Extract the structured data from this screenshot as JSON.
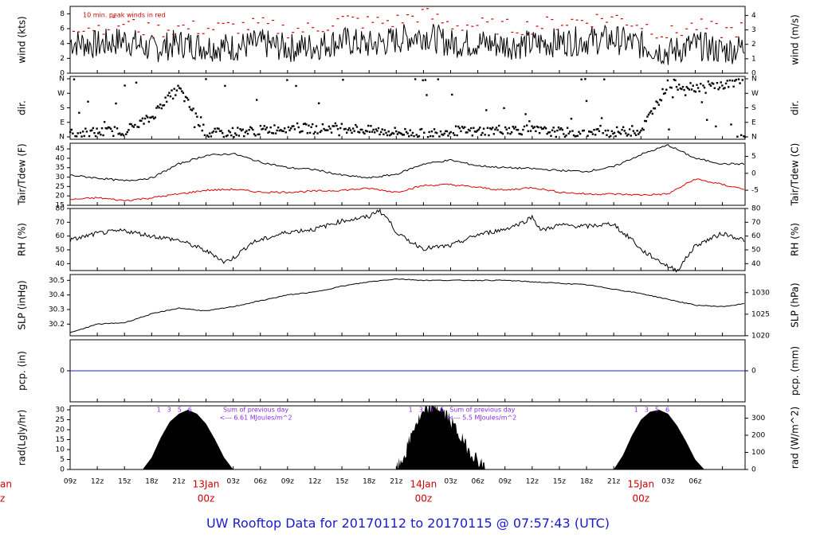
{
  "title": "UW Rooftop Data for 20170112  to  20170115 @ 07:57:43  (UTC)",
  "chart_data": [
    {
      "type": "line",
      "panel": "wind",
      "ylabel_left": "wind (kts)",
      "ylabel_right": "wind (m/s)",
      "ylim": [
        0,
        9
      ],
      "yticks_left": [
        "0",
        "2",
        "4",
        "6",
        "8"
      ],
      "yticks_right": [
        "0",
        "1",
        "2",
        "3",
        "4"
      ],
      "annotation": "10 min. peak winds in red",
      "series": [
        {
          "color": "#000000",
          "x": [
            0,
            3,
            6,
            9,
            12,
            15,
            18,
            21,
            24,
            27,
            30,
            33,
            36,
            39,
            42,
            45,
            48,
            51,
            54,
            57,
            60,
            63,
            66,
            69,
            72,
            74.5
          ],
          "values": [
            4.2,
            3.8,
            4.5,
            3.2,
            4.0,
            3.6,
            3.5,
            4.0,
            3.4,
            3.6,
            4.4,
            3.8,
            4.5,
            5.2,
            4.0,
            4.1,
            3.8,
            3.9,
            4.2,
            4.4,
            4.6,
            3.8,
            2.8,
            3.8,
            3.0,
            3.5
          ]
        },
        {
          "color": "#cc0000",
          "x": [
            0,
            3,
            6,
            9,
            12,
            15,
            18,
            21,
            24,
            27,
            30,
            33,
            36,
            39,
            42,
            45,
            48,
            51,
            54,
            57,
            60,
            63,
            66,
            69,
            72,
            74.5
          ],
          "values": [
            6.5,
            6.2,
            6.8,
            5.6,
            6.2,
            6.0,
            6.2,
            6.5,
            5.8,
            6.0,
            7.2,
            6.8,
            7.0,
            8.0,
            6.5,
            6.5,
            6.2,
            6.3,
            6.8,
            7.2,
            7.5,
            6.6,
            5.2,
            6.4,
            5.6,
            6.0
          ]
        }
      ]
    },
    {
      "type": "scatter",
      "panel": "dir.",
      "ylabel_left": "dir.",
      "ylabel_right": "dir.",
      "yticks": [
        "N",
        "E",
        "S",
        "W",
        "N"
      ],
      "series": [
        {
          "color": "#000000",
          "x": [
            0,
            3,
            6,
            9,
            10,
            11,
            12,
            15,
            18,
            21,
            24,
            27,
            30,
            33,
            36,
            39,
            42,
            45,
            48,
            51,
            54,
            57,
            60,
            63,
            66,
            69,
            72,
            74.5
          ],
          "values": [
            20,
            30,
            40,
            120,
            200,
            250,
            300,
            20,
            30,
            40,
            60,
            50,
            60,
            40,
            30,
            20,
            40,
            30,
            50,
            40,
            30,
            20,
            30,
            40,
            330,
            310,
            320,
            350
          ]
        }
      ]
    },
    {
      "type": "line",
      "panel": "Tair/Tdew",
      "ylabel_left": "Tair/Tdew (F)",
      "ylabel_right": "Tair/Tdew (C)",
      "ylim": [
        15,
        48
      ],
      "yticks_left": [
        "15",
        "20",
        "25",
        "30",
        "35",
        "40",
        "45"
      ],
      "yticks_right": [
        "-5",
        "0",
        "5"
      ],
      "series": [
        {
          "color": "#000000",
          "x": [
            0,
            3,
            6,
            9,
            12,
            15,
            18,
            21,
            24,
            27,
            30,
            33,
            36,
            39,
            42,
            45,
            48,
            51,
            54,
            57,
            60,
            63,
            66,
            69,
            72,
            74.5
          ],
          "values": [
            31,
            29.5,
            28,
            29.5,
            37,
            41.5,
            42.5,
            38,
            35,
            34,
            31,
            29.5,
            31.5,
            37,
            39,
            36,
            35,
            34.5,
            33.5,
            33,
            35.5,
            42,
            47,
            40,
            37,
            37
          ]
        },
        {
          "color": "#dd0000",
          "x": [
            0,
            3,
            6,
            9,
            12,
            15,
            18,
            21,
            24,
            27,
            30,
            33,
            36,
            39,
            42,
            45,
            48,
            51,
            54,
            57,
            60,
            63,
            66,
            69,
            72,
            74.5
          ],
          "values": [
            18,
            19,
            17.5,
            19,
            21,
            23,
            23.5,
            22,
            22,
            22.5,
            23,
            24,
            22,
            25.5,
            26,
            24.5,
            23,
            24.5,
            22,
            21,
            21,
            20.5,
            21,
            29,
            26,
            23.5
          ]
        }
      ]
    },
    {
      "type": "line",
      "panel": "RH",
      "ylabel_left": "RH (%)",
      "ylabel_right": "RH (%)",
      "ylim": [
        35,
        80
      ],
      "yticks_left": [
        "40",
        "50",
        "60",
        "70",
        "80"
      ],
      "yticks_right": [
        "40",
        "50",
        "60",
        "70",
        "80"
      ],
      "series": [
        {
          "color": "#000000",
          "x": [
            0,
            3,
            6,
            9,
            12,
            14,
            16,
            17,
            18,
            20,
            22,
            24,
            27,
            30,
            33,
            34,
            35,
            36,
            37,
            39,
            42,
            45,
            48,
            50,
            51,
            52,
            54,
            57,
            60,
            61,
            62,
            63,
            64,
            66,
            67,
            69,
            72,
            74.5
          ],
          "values": [
            57,
            62,
            64,
            60,
            57,
            52,
            46,
            41,
            44,
            55,
            59,
            63,
            65,
            71,
            74,
            79,
            73,
            63,
            58,
            51,
            53,
            61,
            65,
            70,
            74,
            64,
            68,
            67,
            69,
            62,
            58,
            50,
            46,
            38,
            35,
            53,
            62,
            57
          ]
        }
      ]
    },
    {
      "type": "line",
      "panel": "SLP",
      "ylabel_left": "SLP (inHg)",
      "ylabel_right": "SLP (hPa)",
      "ylim": [
        30.12,
        30.54
      ],
      "yticks_left": [
        "30.2",
        "30.3",
        "30.4",
        "30.5"
      ],
      "yticks_right": [
        "1020",
        "1025",
        "1030"
      ],
      "series": [
        {
          "color": "#000000",
          "x": [
            0,
            3,
            6,
            9,
            12,
            15,
            18,
            21,
            24,
            27,
            30,
            33,
            36,
            39,
            42,
            45,
            48,
            51,
            54,
            57,
            60,
            63,
            66,
            69,
            72,
            74.5
          ],
          "values": [
            30.14,
            30.2,
            30.21,
            30.27,
            30.31,
            30.29,
            30.32,
            30.36,
            30.4,
            30.42,
            30.46,
            30.49,
            30.51,
            30.5,
            30.5,
            30.5,
            30.5,
            30.49,
            30.48,
            30.47,
            30.44,
            30.41,
            30.37,
            30.33,
            30.32,
            30.34
          ]
        }
      ]
    },
    {
      "type": "line",
      "panel": "pcp",
      "ylabel_left": "pcp. (in)",
      "ylabel_right": "pcp. (mm)",
      "yticks_left": [
        "0"
      ],
      "yticks_right": [
        "0"
      ],
      "series": [
        {
          "color": "#2222cc",
          "x": [
            0,
            74.5
          ],
          "values": [
            0,
            0
          ]
        }
      ]
    },
    {
      "type": "area",
      "panel": "rad",
      "ylabel_left": "rad(Lgly/hr)",
      "ylabel_right": "rad (W/m^2)",
      "ylim": [
        0,
        32
      ],
      "yticks_left": [
        "0",
        "5",
        "10",
        "15",
        "20",
        "25",
        "30"
      ],
      "yticks_right": [
        "0",
        "100",
        "200",
        "300"
      ],
      "annotations": [
        {
          "text": "Sum of previous day",
          "line2": "<--- 6.61 MJoules/m^2"
        },
        {
          "text": "Sum of previous day",
          "line2": "<--- 5.5 MJoules/m^2"
        }
      ],
      "hour_marks": [
        "1",
        "3",
        "5",
        "6"
      ],
      "series": [
        {
          "color": "#000000",
          "x": [
            8,
            9,
            10,
            11,
            12,
            13,
            14,
            15,
            16,
            17,
            18,
            36,
            37,
            38,
            39,
            40,
            41,
            42,
            43,
            44,
            45,
            46,
            60,
            61,
            62,
            63,
            64,
            65,
            66,
            67,
            68,
            69,
            70
          ],
          "values": [
            0,
            6,
            16,
            24,
            28,
            30,
            28,
            23,
            15,
            6,
            0,
            0,
            8,
            22,
            28,
            33,
            30,
            25,
            17,
            10,
            5,
            0,
            0,
            7,
            17,
            25,
            29,
            30,
            28,
            22,
            14,
            5,
            0
          ]
        }
      ],
      "xticks": [
        "09z",
        "12z",
        "15z",
        "18z",
        "21z",
        "03z",
        "06z",
        "09z",
        "12z",
        "15z",
        "18z",
        "21z",
        "03z",
        "06z",
        "09z",
        "12z",
        "15z",
        "18z",
        "21z",
        "03z",
        "06z"
      ],
      "date_labels": [
        {
          "date": "13Jan",
          "time": "00z"
        },
        {
          "date": "14Jan",
          "time": "00z"
        },
        {
          "date": "15Jan",
          "time": "00z"
        }
      ],
      "edge_labels": [
        "an",
        "z"
      ]
    }
  ]
}
